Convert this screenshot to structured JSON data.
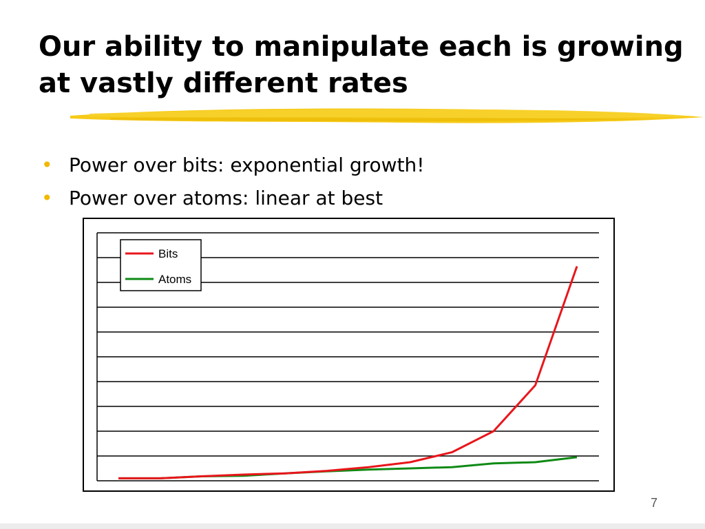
{
  "slide": {
    "title": "Our ability to manipulate each is growing at vastly different rates",
    "bullets": [
      "Power over bits: exponential growth!",
      "Power over atoms: linear at best"
    ],
    "page_number": "7"
  },
  "colors": {
    "title_underline": "#f5c400",
    "bullet": "#f2b800",
    "bits": "#e8161b",
    "atoms": "#0e8a14"
  },
  "chart_data": {
    "type": "line",
    "title": "",
    "xlabel": "",
    "ylabel": "",
    "x": [
      1,
      2,
      3,
      4,
      5,
      6,
      7,
      8,
      9,
      10,
      11,
      12
    ],
    "ylim": [
      0,
      10
    ],
    "grid": true,
    "legend_placement": "top-left",
    "series": [
      {
        "name": "Bits",
        "color": "#e8161b",
        "values": [
          0.1,
          0.1,
          0.18,
          0.25,
          0.3,
          0.4,
          0.55,
          0.75,
          1.15,
          2.0,
          3.85,
          8.65
        ]
      },
      {
        "name": "Atoms",
        "color": "#0e8a14",
        "values": [
          0.1,
          0.1,
          0.18,
          0.2,
          0.3,
          0.38,
          0.45,
          0.5,
          0.55,
          0.7,
          0.75,
          0.95
        ]
      }
    ]
  }
}
